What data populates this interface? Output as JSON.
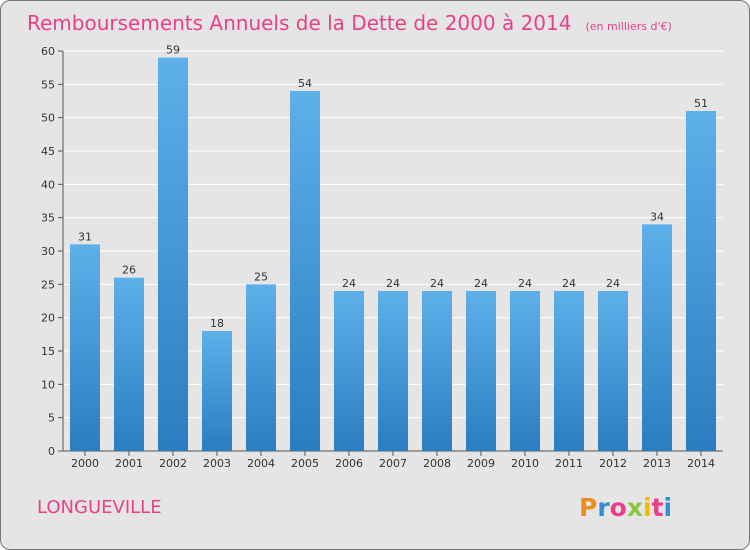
{
  "chart_data": {
    "type": "bar",
    "title": "Remboursements Annuels de la Dette de 2000 à 2014",
    "subtitle": "(en milliers d'€)",
    "xlabel": "",
    "ylabel": "",
    "categories": [
      "2000",
      "2001",
      "2002",
      "2003",
      "2004",
      "2005",
      "2006",
      "2007",
      "2008",
      "2009",
      "2010",
      "2011",
      "2012",
      "2013",
      "2014"
    ],
    "values": [
      31,
      26,
      59,
      18,
      25,
      54,
      24,
      24,
      24,
      24,
      24,
      24,
      24,
      34,
      51
    ],
    "ylim": [
      0,
      60
    ],
    "yticks": [
      0,
      5,
      10,
      15,
      20,
      25,
      30,
      35,
      40,
      45,
      50,
      55,
      60
    ],
    "grid": "horizontal",
    "legend": "none",
    "colors": {
      "bar_top": "#5eb0ea",
      "bar_bottom": "#2a7dc0",
      "title": "#e8418a",
      "background": "#e5e5e5",
      "grid": "#ffffff"
    }
  },
  "footer": {
    "commune": "LONGUEVILLE"
  },
  "brand": {
    "letters": [
      "P",
      "r",
      "o",
      "x",
      "i",
      "t",
      "i"
    ],
    "colors": [
      "#f08c1e",
      "#2f8fd0",
      "#e83e8c",
      "#8dc63f",
      "#f5b800",
      "#e83e8c",
      "#2f8fd0"
    ]
  }
}
